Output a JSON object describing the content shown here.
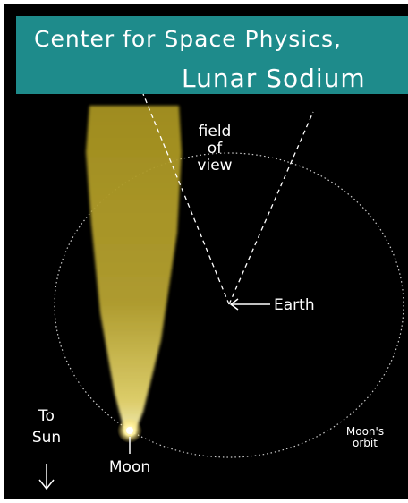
{
  "header": {
    "line1": "Center for Space Physics,",
    "line2": "Lunar Sodium"
  },
  "labels": {
    "field_of_view": [
      "field",
      "of",
      "view"
    ],
    "earth": "Earth",
    "to_sun": [
      "To",
      "Sun"
    ],
    "moon": "Moon",
    "moons_orbit": [
      "Moon's",
      "orbit"
    ]
  }
}
